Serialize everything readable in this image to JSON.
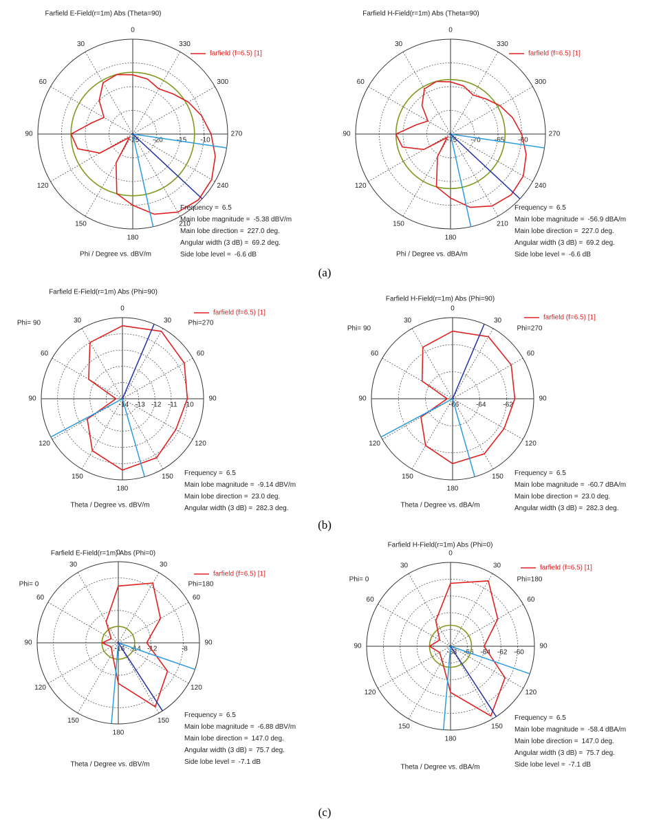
{
  "captions": [
    "(a)",
    "(b)",
    "(c)"
  ],
  "chart_data": [
    {
      "type": "polar",
      "title": "Farfield E-Field(r=1m) Abs (Theta=90)",
      "axis_label": "Phi / Degree vs. dBV/m",
      "angle_direction": "counterclockwise",
      "angle_ticks": [
        0,
        30,
        60,
        90,
        120,
        150,
        180,
        210,
        240,
        270,
        300,
        330
      ],
      "rlim": [
        -25,
        -5
      ],
      "rticks": [
        -25,
        -20,
        -15,
        -10
      ],
      "colors": {
        "main_lobe": "#1f2fa8",
        "beam_width": "#2b9be0",
        "side_lobe": "#7e9a1e"
      },
      "series": [
        {
          "name": "farfield (f=6.5) [1]",
          "color": "#e02020",
          "angles": [
            0,
            15,
            30,
            45,
            60,
            75,
            90,
            105,
            120,
            135,
            150,
            165,
            180,
            195,
            210,
            225,
            240,
            255,
            270,
            285,
            300,
            315,
            330,
            345
          ],
          "values": [
            -12.5,
            -12,
            -12.5,
            -15,
            -18,
            -16,
            -12,
            -13,
            -17,
            -24,
            -18,
            -12,
            -10,
            -7.5,
            -6,
            -5.4,
            -5.8,
            -7,
            -8.5,
            -10,
            -11.5,
            -13,
            -14,
            -13
          ]
        }
      ],
      "info": {
        "frequency": {
          "label": "Frequency =",
          "value": 6.5
        },
        "main_lobe_magnitude": {
          "label": "Main lobe magnitude =",
          "value": -5.38,
          "value_label": "-5.38 dBV/m"
        },
        "main_lobe_direction": {
          "label": "Main lobe direction =",
          "value": 227,
          "value_label": "227.0 deg."
        },
        "angular_width": {
          "label": "Angular width (3 dB) =",
          "value": 69.2,
          "value_label": "69.2 deg."
        },
        "side_lobe_level": {
          "label": "Side lobe level =",
          "value": -6.6,
          "value_label": "-6.6 dB"
        }
      }
    },
    {
      "type": "polar",
      "title": "Farfield H-Field(r=1m) Abs (Theta=90)",
      "axis_label": "Phi / Degree vs. dBA/m",
      "angle_direction": "counterclockwise",
      "angle_ticks": [
        0,
        30,
        60,
        90,
        120,
        150,
        180,
        210,
        240,
        270,
        300,
        330
      ],
      "rlim": [
        -75,
        -55
      ],
      "rticks": [
        -75,
        -70,
        -65,
        -60
      ],
      "colors": {
        "main_lobe": "#1f2fa8",
        "beam_width": "#2b9be0",
        "side_lobe": "#7e9a1e"
      },
      "series": [
        {
          "name": "farfield (f=6.5) [1]",
          "color": "#e02020",
          "angles": [
            0,
            15,
            30,
            45,
            60,
            75,
            90,
            105,
            120,
            135,
            150,
            165,
            180,
            195,
            210,
            225,
            240,
            255,
            270,
            285,
            300,
            315,
            330,
            345
          ],
          "values": [
            -64,
            -63.5,
            -64,
            -66.5,
            -69.5,
            -67.5,
            -63.5,
            -64.5,
            -68.5,
            -74,
            -69.5,
            -63.5,
            -61.5,
            -59,
            -57.5,
            -56.9,
            -57.3,
            -58.5,
            -60,
            -61.5,
            -63,
            -64.5,
            -65.5,
            -64.5
          ]
        }
      ],
      "info": {
        "frequency": {
          "label": "Frequency =",
          "value": 6.5
        },
        "main_lobe_magnitude": {
          "label": "Main lobe magnitude =",
          "value": -56.9,
          "value_label": "-56.9 dBA/m"
        },
        "main_lobe_direction": {
          "label": "Main lobe direction =",
          "value": 227,
          "value_label": "227.0 deg."
        },
        "angular_width": {
          "label": "Angular width (3 dB) =",
          "value": 69.2,
          "value_label": "69.2 deg."
        },
        "side_lobe_level": {
          "label": "Side lobe level =",
          "value": -6.6,
          "value_label": "-6.6 dB"
        }
      }
    },
    {
      "type": "polar",
      "title": "Farfield E-Field(r=1m) Abs (Phi=90)",
      "axis_label": "Theta / Degree vs. dBV/m",
      "side_labels": [
        "Phi= 90",
        "Phi=270"
      ],
      "angle_direction": "clockwise",
      "angle_ticks": [
        0,
        30,
        60,
        90,
        120,
        150,
        180,
        {
          "value": -150,
          "label": "150"
        },
        {
          "value": -120,
          "label": "120"
        },
        {
          "value": -90,
          "label": "90"
        },
        {
          "value": -60,
          "label": "60"
        },
        {
          "value": -30,
          "label": "30"
        }
      ],
      "rlim": [
        -14,
        -9
      ],
      "rticks": [
        -14,
        -13,
        -12,
        -11,
        -10
      ],
      "colors": {
        "main_lobe": "#1f2fa8",
        "beam_width": "#2b9be0",
        "side_lobe": "#7e9a1e"
      },
      "series": [
        {
          "name": "farfield (f=6.5) [1]",
          "color": "#e02020",
          "angles": [
            -180,
            -150,
            -120,
            -90,
            -60,
            -30,
            0,
            30,
            60,
            90,
            120,
            150,
            180
          ],
          "values": [
            -9.6,
            -10.3,
            -11.5,
            -13.6,
            -11.6,
            -10,
            -9.5,
            -9.2,
            -9.6,
            -10,
            -10.2,
            -9.8,
            -9.6
          ]
        }
      ],
      "info": {
        "frequency": {
          "label": "Frequency =",
          "value": 6.5
        },
        "main_lobe_magnitude": {
          "label": "Main lobe magnitude =",
          "value": -9.14,
          "value_label": "-9.14 dBV/m"
        },
        "main_lobe_direction": {
          "label": "Main lobe direction =",
          "value": 23,
          "value_label": "23.0 deg."
        },
        "angular_width": {
          "label": "Angular width (3 dB) =",
          "value": 282.3,
          "value_label": "282.3 deg."
        }
      }
    },
    {
      "type": "polar",
      "title": "Farfield H-Field(r=1m) Abs (Phi=90)",
      "axis_label": "Theta / Degree vs. dBA/m",
      "side_labels": [
        "Phi= 90",
        "Phi=270"
      ],
      "angle_direction": "clockwise",
      "angle_ticks": [
        0,
        30,
        60,
        90,
        120,
        150,
        180,
        {
          "value": -150,
          "label": "150"
        },
        {
          "value": -120,
          "label": "120"
        },
        {
          "value": -90,
          "label": "90"
        },
        {
          "value": -60,
          "label": "60"
        },
        {
          "value": -30,
          "label": "30"
        }
      ],
      "rlim": [
        -66,
        -60
      ],
      "rticks": [
        -66,
        -64,
        -62
      ],
      "colors": {
        "main_lobe": "#1f2fa8",
        "beam_width": "#2b9be0",
        "side_lobe": "#7e9a1e"
      },
      "series": [
        {
          "name": "farfield (f=6.5) [1]",
          "color": "#e02020",
          "angles": [
            -180,
            -150,
            -120,
            -90,
            -60,
            -30,
            0,
            30,
            60,
            90,
            120,
            150,
            180
          ],
          "values": [
            -61.2,
            -62,
            -63.3,
            -65.6,
            -63.4,
            -61.6,
            -61,
            -60.7,
            -61,
            -61.4,
            -61.6,
            -61.3,
            -61.2
          ]
        }
      ],
      "info": {
        "frequency": {
          "label": "Frequency =",
          "value": 6.5
        },
        "main_lobe_magnitude": {
          "label": "Main lobe magnitude =",
          "value": -60.7,
          "value_label": "-60.7 dBA/m"
        },
        "main_lobe_direction": {
          "label": "Main lobe direction =",
          "value": 23,
          "value_label": "23.0 deg."
        },
        "angular_width": {
          "label": "Angular width (3 dB) =",
          "value": 282.3,
          "value_label": "282.3 deg."
        }
      }
    },
    {
      "type": "polar",
      "title": "Farfield E-Field(r=1m) Abs (Phi=0)",
      "axis_label": "Theta / Degree vs. dBV/m",
      "side_labels": [
        "Phi= 0",
        "Phi=180"
      ],
      "angle_direction": "clockwise",
      "angle_ticks": [
        0,
        30,
        60,
        90,
        120,
        150,
        180,
        {
          "value": -150,
          "label": "150"
        },
        {
          "value": -120,
          "label": "120"
        },
        {
          "value": -90,
          "label": "90"
        },
        {
          "value": -60,
          "label": "60"
        },
        {
          "value": -30,
          "label": "30"
        }
      ],
      "rlim": [
        -16,
        -6
      ],
      "rticks": [
        -16,
        -14,
        -12,
        -8
      ],
      "colors": {
        "main_lobe": "#1f2fa8",
        "beam_width": "#2b9be0",
        "side_lobe": "#7e9a1e"
      },
      "series": [
        {
          "name": "farfield (f=6.5) [1]",
          "color": "#e02020",
          "angles": [
            -180,
            -150,
            -120,
            -90,
            -60,
            -30,
            0,
            30,
            60,
            90,
            120,
            150,
            180
          ],
          "values": [
            -11,
            -14.5,
            -15,
            -14,
            -15,
            -13,
            -9,
            -7.5,
            -10,
            -12.5,
            -9,
            -6.9,
            -11
          ]
        }
      ],
      "info": {
        "frequency": {
          "label": "Frequency =",
          "value": 6.5
        },
        "main_lobe_magnitude": {
          "label": "Main lobe magnitude =",
          "value": -6.88,
          "value_label": "-6.88 dBV/m"
        },
        "main_lobe_direction": {
          "label": "Main lobe direction =",
          "value": 147,
          "value_label": "147.0 deg."
        },
        "angular_width": {
          "label": "Angular width (3 dB) =",
          "value": 75.7,
          "value_label": "75.7 deg."
        },
        "side_lobe_level": {
          "label": "Side lobe level =",
          "value": -7.1,
          "value_label": "-7.1 dB"
        }
      }
    },
    {
      "type": "polar",
      "title": "Farfield H-Field(r=1m) Abs (Phi=0)",
      "axis_label": "Theta / Degree vs. dBA/m",
      "side_labels": [
        "Phi= 0",
        "Phi=180"
      ],
      "angle_direction": "clockwise",
      "angle_ticks": [
        0,
        30,
        60,
        90,
        120,
        150,
        180,
        {
          "value": -150,
          "label": "150"
        },
        {
          "value": -120,
          "label": "120"
        },
        {
          "value": -90,
          "label": "90"
        },
        {
          "value": -60,
          "label": "60"
        },
        {
          "value": -30,
          "label": "30"
        }
      ],
      "rlim": [
        -68,
        -58
      ],
      "rticks": [
        -68,
        -66,
        -64,
        -62,
        -60
      ],
      "colors": {
        "main_lobe": "#1f2fa8",
        "beam_width": "#2b9be0",
        "side_lobe": "#7e9a1e"
      },
      "series": [
        {
          "name": "farfield (f=6.5) [1]",
          "color": "#e02020",
          "angles": [
            -180,
            -150,
            -120,
            -90,
            -60,
            -30,
            0,
            30,
            60,
            90,
            120,
            150,
            180
          ],
          "values": [
            -62.5,
            -66,
            -66.5,
            -65.5,
            -66.5,
            -64.5,
            -60.5,
            -59,
            -61.5,
            -64,
            -60.5,
            -58.4,
            -62.5
          ]
        }
      ],
      "info": {
        "frequency": {
          "label": "Frequency =",
          "value": 6.5
        },
        "main_lobe_magnitude": {
          "label": "Main lobe magnitude =",
          "value": -58.4,
          "value_label": "-58.4 dBA/m"
        },
        "main_lobe_direction": {
          "label": "Main lobe direction =",
          "value": 147,
          "value_label": "147.0 deg."
        },
        "angular_width": {
          "label": "Angular width (3 dB) =",
          "value": 75.7,
          "value_label": "75.7 deg."
        },
        "side_lobe_level": {
          "label": "Side lobe level =",
          "value": -7.1,
          "value_label": "-7.1 dB"
        }
      }
    }
  ]
}
